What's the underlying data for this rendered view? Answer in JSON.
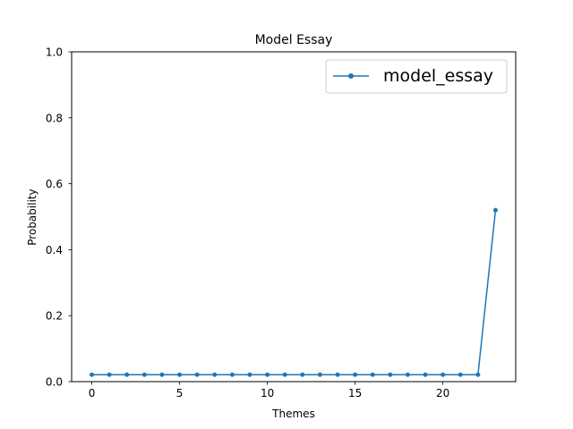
{
  "chart_data": {
    "type": "line",
    "title": "Model Essay",
    "xlabel": "Themes",
    "ylabel": "Probability",
    "xlim": [
      -1.15,
      24.15
    ],
    "ylim": [
      0.0,
      1.0
    ],
    "x_ticks": [
      0,
      5,
      10,
      15,
      20
    ],
    "x_tick_labels": [
      "0",
      "5",
      "10",
      "15",
      "20"
    ],
    "y_ticks": [
      0.0,
      0.2,
      0.4,
      0.6,
      0.8,
      1.0
    ],
    "y_tick_labels": [
      "0.0",
      "0.2",
      "0.4",
      "0.6",
      "0.8",
      "1.0"
    ],
    "grid": false,
    "legend_position": "top-right",
    "series": [
      {
        "name": "model_essay",
        "color": "#1f77b4",
        "marker": "circle",
        "x": [
          0,
          1,
          2,
          3,
          4,
          5,
          6,
          7,
          8,
          9,
          10,
          11,
          12,
          13,
          14,
          15,
          16,
          17,
          18,
          19,
          20,
          21,
          22,
          23
        ],
        "y": [
          0.021,
          0.021,
          0.021,
          0.021,
          0.021,
          0.021,
          0.021,
          0.021,
          0.021,
          0.021,
          0.021,
          0.021,
          0.021,
          0.021,
          0.021,
          0.021,
          0.021,
          0.021,
          0.021,
          0.021,
          0.021,
          0.021,
          0.021,
          0.52
        ]
      }
    ]
  }
}
